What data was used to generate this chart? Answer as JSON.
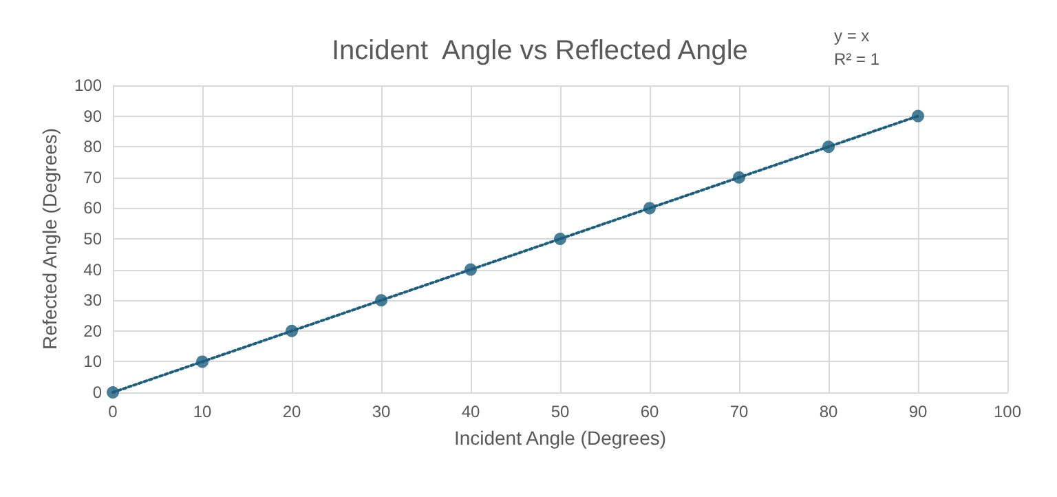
{
  "chart_data": {
    "type": "scatter",
    "title": "Incident  Angle vs Reflected Angle",
    "xlabel": "Incident Angle (Degrees)",
    "ylabel": "Refected Angle (Degrees)",
    "annotations": [
      "y = x",
      "R² = 1"
    ],
    "x": [
      0,
      10,
      20,
      30,
      40,
      50,
      60,
      70,
      80,
      90
    ],
    "series": [
      {
        "color": "#1b5e7e",
        "marker": "circle",
        "values": [
          0,
          10,
          20,
          30,
          40,
          50,
          60,
          70,
          80,
          90
        ]
      },
      {
        "type": "line",
        "color": "#1b5e7e",
        "line_style": "dotted",
        "marker": "none",
        "x": [
          0,
          90
        ],
        "values": [
          0,
          90
        ]
      }
    ],
    "xlim": [
      0,
      100
    ],
    "xticks": [
      0,
      10,
      20,
      30,
      40,
      50,
      60,
      70,
      80,
      90,
      100
    ],
    "ylim": [
      0,
      100
    ],
    "yticks": [
      0,
      10,
      20,
      30,
      40,
      50,
      60,
      70,
      80,
      90,
      100
    ],
    "grid": true
  }
}
